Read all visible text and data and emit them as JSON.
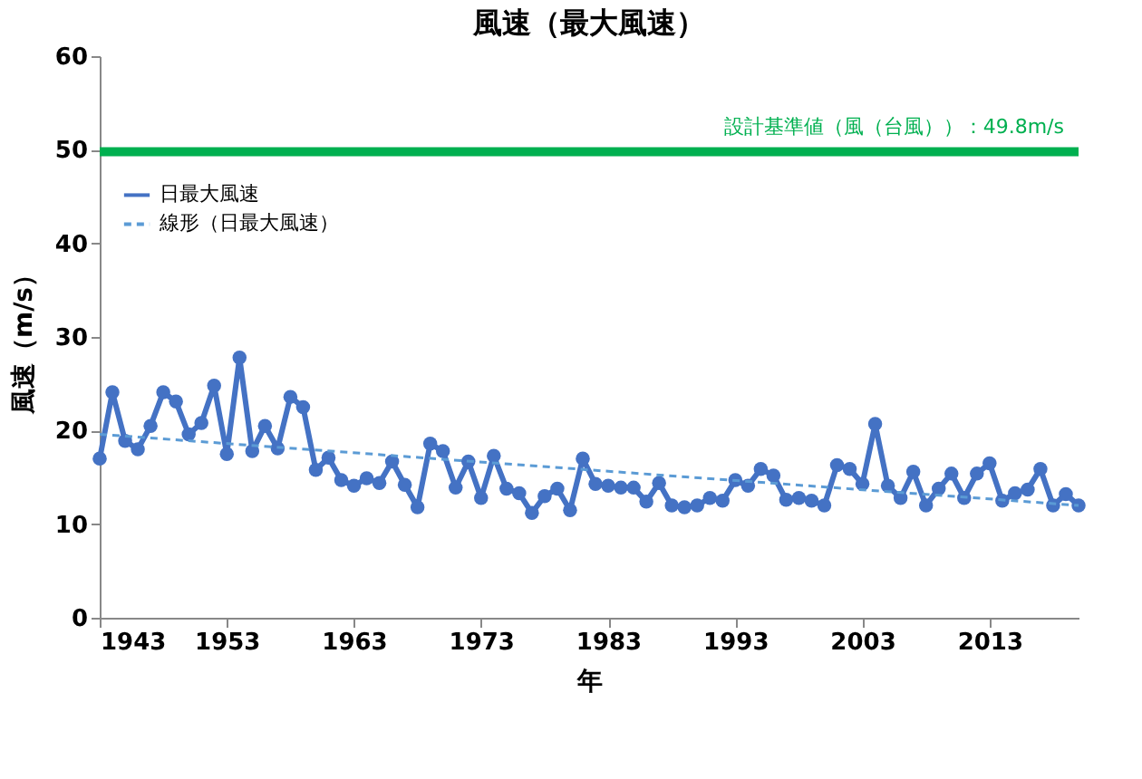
{
  "chart_data": {
    "type": "line",
    "title": "風速（最大風速）",
    "xlabel": "年",
    "ylabel": "風速（m/s）",
    "x": [
      1943,
      1944,
      1945,
      1946,
      1947,
      1948,
      1949,
      1950,
      1951,
      1952,
      1953,
      1954,
      1955,
      1956,
      1957,
      1958,
      1959,
      1960,
      1961,
      1962,
      1963,
      1964,
      1965,
      1966,
      1967,
      1968,
      1969,
      1970,
      1971,
      1972,
      1973,
      1974,
      1975,
      1976,
      1977,
      1978,
      1979,
      1980,
      1981,
      1982,
      1983,
      1984,
      1985,
      1986,
      1987,
      1988,
      1989,
      1990,
      1991,
      1992,
      1993,
      1994,
      1995,
      1996,
      1997,
      1998,
      1999,
      2000,
      2001,
      2002,
      2003,
      2004,
      2005,
      2006,
      2007,
      2008,
      2009,
      2010,
      2011,
      2012,
      2013,
      2014,
      2015,
      2016,
      2017,
      2018,
      2019,
      2020
    ],
    "series": [
      {
        "name": "日最大風速",
        "color": "#4472c4",
        "marker": "circle",
        "line_style": "solid",
        "values": [
          17.0,
          24.1,
          18.9,
          18.0,
          20.5,
          24.1,
          23.1,
          19.6,
          20.8,
          24.8,
          17.5,
          27.8,
          17.8,
          20.5,
          18.1,
          23.6,
          22.5,
          15.8,
          17.1,
          14.7,
          14.1,
          14.9,
          14.4,
          16.7,
          14.2,
          11.8,
          18.6,
          17.8,
          13.9,
          16.7,
          12.8,
          17.3,
          13.8,
          13.3,
          11.2,
          13.0,
          13.8,
          11.5,
          17.0,
          14.3,
          14.1,
          13.9,
          13.9,
          12.4,
          14.4,
          12.0,
          11.8,
          12.0,
          12.8,
          12.5,
          14.7,
          14.1,
          15.9,
          15.2,
          12.6,
          12.8,
          12.5,
          12.0,
          16.3,
          15.9,
          14.3,
          20.7,
          14.1,
          12.8,
          15.6,
          12.0,
          13.8,
          15.4,
          12.8,
          15.4,
          16.5,
          12.5,
          13.3,
          13.7,
          15.9,
          12.0,
          13.2,
          12.0
        ]
      },
      {
        "name": "線形（日最大風速）",
        "color": "#5b9bd5",
        "marker": "none",
        "line_style": "dashed",
        "x": [
          1943,
          2020
        ],
        "values": [
          19.6,
          12.0
        ]
      }
    ],
    "xlim": [
      1943,
      2020
    ],
    "xticks": [
      1943,
      1953,
      1963,
      1973,
      1983,
      1993,
      2003,
      2013
    ],
    "ylim": [
      0,
      60
    ],
    "yticks": [
      0,
      10,
      20,
      30,
      40,
      50,
      60
    ],
    "ref_lines": [
      {
        "axis": "y",
        "value": 49.8,
        "label": "設計基準値（風（台風））：49.8m/s",
        "color": "#00b050"
      }
    ],
    "grid": false,
    "legend": "top left"
  }
}
